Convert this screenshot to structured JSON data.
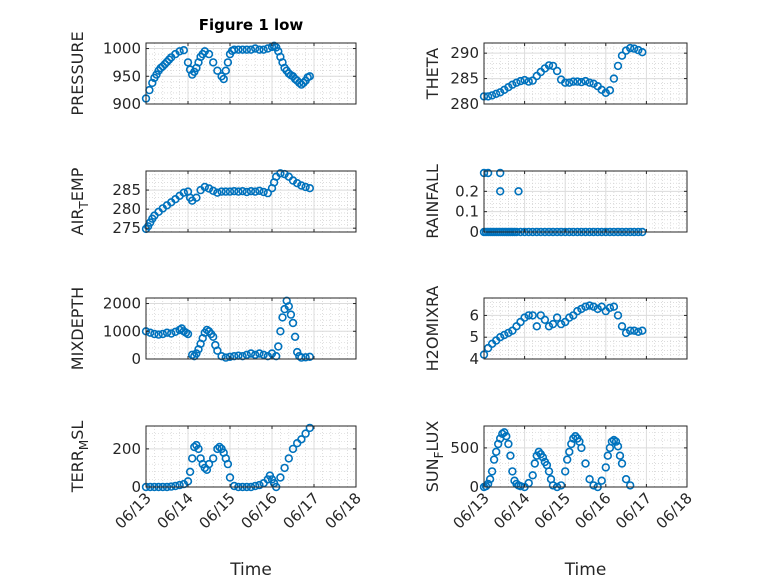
{
  "figure": {
    "title": "Figure 1 low",
    "xlabel": "Time",
    "x_ticks": [
      "06/13",
      "06/14",
      "06/15",
      "06/16",
      "06/17",
      "06/18"
    ],
    "marker_color": "#0072BD",
    "grid_major": true,
    "grid_minor": true
  },
  "chart_data": [
    {
      "type": "scatter",
      "ylabel": "PRESSURE",
      "ylim": [
        900,
        1010
      ],
      "yticks": [
        900,
        950,
        1000
      ],
      "x": [
        0,
        0.08,
        0.15,
        0.2,
        0.25,
        0.3,
        0.35,
        0.4,
        0.45,
        0.5,
        0.55,
        0.6,
        0.7,
        0.8,
        0.9,
        1.0,
        1.05,
        1.1,
        1.15,
        1.2,
        1.25,
        1.3,
        1.35,
        1.4,
        1.5,
        1.6,
        1.7,
        1.8,
        1.85,
        1.9,
        1.95,
        2.0,
        2.05,
        2.1,
        2.2,
        2.3,
        2.4,
        2.5,
        2.6,
        2.7,
        2.8,
        2.9,
        3.0,
        3.05,
        3.1,
        3.15,
        3.2,
        3.25,
        3.3,
        3.35,
        3.4,
        3.45,
        3.5,
        3.55,
        3.6,
        3.65,
        3.7,
        3.75,
        3.8,
        3.85,
        3.9
      ],
      "y": [
        910,
        925,
        938,
        947,
        953,
        960,
        965,
        968,
        972,
        976,
        980,
        984,
        990,
        995,
        997,
        975,
        962,
        953,
        958,
        965,
        975,
        985,
        990,
        995,
        990,
        975,
        960,
        950,
        945,
        960,
        975,
        990,
        996,
        998,
        998,
        998,
        998,
        998,
        1000,
        998,
        998,
        1000,
        1003,
        1005,
        1002,
        995,
        985,
        975,
        965,
        960,
        955,
        952,
        950,
        945,
        942,
        938,
        935,
        938,
        942,
        948,
        950
      ]
    },
    {
      "type": "scatter",
      "ylabel": "THETA",
      "ylim": [
        280,
        292
      ],
      "yticks": [
        280,
        285,
        290
      ],
      "x": [
        0,
        0.1,
        0.2,
        0.3,
        0.4,
        0.5,
        0.6,
        0.7,
        0.8,
        0.9,
        1.0,
        1.1,
        1.2,
        1.3,
        1.4,
        1.5,
        1.6,
        1.7,
        1.8,
        1.9,
        2.0,
        2.1,
        2.2,
        2.3,
        2.4,
        2.5,
        2.6,
        2.7,
        2.8,
        2.9,
        3.0,
        3.1,
        3.2,
        3.3,
        3.4,
        3.5,
        3.6,
        3.7,
        3.8,
        3.9
      ],
      "y": [
        281.5,
        281.5,
        281.7,
        282,
        282.3,
        282.8,
        283.3,
        283.8,
        284.2,
        284.5,
        284.7,
        284.4,
        284.6,
        285.5,
        286.3,
        287,
        287.6,
        287.5,
        286.5,
        284.8,
        284.2,
        284.2,
        284.4,
        284.4,
        284.3,
        284.5,
        284.2,
        284,
        283.5,
        282.8,
        282.2,
        282.7,
        285,
        287.5,
        289.5,
        290.5,
        291,
        290.9,
        290.6,
        290.2
      ]
    },
    {
      "type": "scatter",
      "ylabel": "AIR_TEMP",
      "ylim": [
        274,
        290
      ],
      "yticks": [
        275,
        280,
        285
      ],
      "x": [
        0,
        0.05,
        0.1,
        0.15,
        0.2,
        0.3,
        0.4,
        0.5,
        0.6,
        0.7,
        0.8,
        0.9,
        1.0,
        1.05,
        1.1,
        1.2,
        1.3,
        1.4,
        1.5,
        1.6,
        1.7,
        1.8,
        1.9,
        2.0,
        2.1,
        2.2,
        2.3,
        2.4,
        2.5,
        2.6,
        2.7,
        2.8,
        2.9,
        3.0,
        3.05,
        3.1,
        3.2,
        3.3,
        3.4,
        3.5,
        3.6,
        3.7,
        3.8,
        3.9
      ],
      "y": [
        274.8,
        275.5,
        276.5,
        277.5,
        278.3,
        279.3,
        280.2,
        281,
        281.8,
        282.6,
        283.5,
        284.3,
        284.6,
        283,
        282.2,
        283,
        285,
        285.8,
        285.4,
        284.8,
        284.3,
        284.6,
        284.6,
        284.6,
        284.7,
        284.6,
        284.7,
        284.5,
        284.7,
        284.6,
        284.8,
        284.5,
        284.2,
        285.5,
        287,
        288.5,
        289.4,
        289.2,
        288.5,
        287.5,
        286.8,
        286.2,
        285.8,
        285.5
      ]
    },
    {
      "type": "scatter",
      "ylabel": "RAINFALL",
      "ylim": [
        0,
        0.3
      ],
      "yticks": [
        0,
        0.1,
        0.2
      ],
      "x": [
        0,
        0.05,
        0.1,
        0.15,
        0.2,
        0.25,
        0.3,
        0.35,
        0.4,
        0.45,
        0.5,
        0.55,
        0.6,
        0.65,
        0.7,
        0.75,
        0.8,
        0.9,
        1.0,
        1.1,
        1.2,
        1.3,
        1.4,
        1.5,
        1.6,
        1.7,
        1.8,
        1.9,
        2.0,
        2.1,
        2.2,
        2.3,
        2.4,
        2.5,
        2.6,
        2.7,
        2.8,
        2.9,
        3.0,
        3.1,
        3.2,
        3.3,
        3.4,
        3.5,
        3.6,
        3.7,
        3.8,
        3.9,
        0,
        0.1,
        0.4,
        0.4,
        0.85
      ],
      "y": [
        0,
        0,
        0,
        0,
        0,
        0,
        0,
        0,
        0,
        0,
        0,
        0,
        0,
        0,
        0,
        0,
        0,
        0,
        0,
        0,
        0,
        0,
        0,
        0,
        0,
        0,
        0,
        0,
        0,
        0,
        0,
        0,
        0,
        0,
        0,
        0,
        0,
        0,
        0,
        0,
        0,
        0,
        0,
        0,
        0,
        0,
        0,
        0,
        0.29,
        0.29,
        0.29,
        0.2,
        0.2
      ]
    },
    {
      "type": "scatter",
      "ylabel": "MIXDEPTH",
      "ylim": [
        0,
        2200
      ],
      "yticks": [
        0,
        1000,
        2000
      ],
      "x": [
        0,
        0.1,
        0.2,
        0.3,
        0.4,
        0.5,
        0.6,
        0.7,
        0.8,
        0.85,
        0.9,
        0.95,
        1.0,
        1.1,
        1.15,
        1.2,
        1.25,
        1.3,
        1.35,
        1.4,
        1.45,
        1.5,
        1.55,
        1.6,
        1.65,
        1.7,
        1.8,
        1.9,
        2.0,
        2.1,
        2.2,
        2.3,
        2.4,
        2.5,
        2.6,
        2.7,
        2.8,
        2.9,
        3.0,
        3.1,
        3.15,
        3.2,
        3.25,
        3.3,
        3.35,
        3.4,
        3.45,
        3.5,
        3.55,
        3.6,
        3.65,
        3.7,
        3.8,
        3.9
      ],
      "y": [
        1000,
        950,
        900,
        880,
        900,
        950,
        920,
        980,
        1050,
        1100,
        1000,
        950,
        900,
        150,
        100,
        200,
        350,
        550,
        750,
        950,
        1050,
        1000,
        900,
        800,
        500,
        300,
        100,
        50,
        80,
        100,
        120,
        100,
        150,
        200,
        150,
        200,
        150,
        100,
        200,
        100,
        450,
        1000,
        1500,
        1800,
        2100,
        1900,
        1600,
        1300,
        800,
        250,
        100,
        50,
        60,
        80
      ]
    },
    {
      "type": "scatter",
      "ylabel": "H2OMIXRA",
      "ylim": [
        4,
        6.8
      ],
      "yticks": [
        4,
        5,
        6
      ],
      "x": [
        0,
        0.1,
        0.2,
        0.3,
        0.4,
        0.5,
        0.6,
        0.7,
        0.8,
        0.9,
        1.0,
        1.1,
        1.2,
        1.3,
        1.4,
        1.5,
        1.6,
        1.7,
        1.8,
        1.9,
        2.0,
        2.1,
        2.2,
        2.3,
        2.4,
        2.5,
        2.6,
        2.7,
        2.8,
        2.9,
        3.0,
        3.1,
        3.2,
        3.3,
        3.4,
        3.5,
        3.6,
        3.7,
        3.8,
        3.9
      ],
      "y": [
        4.2,
        4.5,
        4.7,
        4.85,
        5.0,
        5.1,
        5.2,
        5.3,
        5.5,
        5.7,
        5.9,
        6.0,
        6.0,
        5.5,
        6.0,
        5.8,
        5.5,
        5.6,
        5.9,
        5.6,
        5.7,
        5.9,
        6.0,
        6.2,
        6.3,
        6.4,
        6.45,
        6.4,
        6.3,
        6.4,
        6.2,
        6.35,
        6.4,
        6.0,
        5.5,
        5.2,
        5.3,
        5.3,
        5.25,
        5.3
      ]
    },
    {
      "type": "scatter",
      "ylabel": "TERR_MSL",
      "ylim": [
        0,
        320
      ],
      "yticks": [
        0,
        200
      ],
      "x": [
        0,
        0.1,
        0.2,
        0.3,
        0.4,
        0.5,
        0.6,
        0.7,
        0.8,
        0.9,
        1.0,
        1.05,
        1.1,
        1.15,
        1.2,
        1.25,
        1.3,
        1.35,
        1.4,
        1.45,
        1.5,
        1.6,
        1.7,
        1.75,
        1.8,
        1.85,
        1.9,
        1.95,
        2.0,
        2.1,
        2.2,
        2.3,
        2.4,
        2.5,
        2.6,
        2.7,
        2.8,
        2.9,
        2.95,
        3.0,
        3.05,
        3.1,
        3.2,
        3.3,
        3.4,
        3.5,
        3.6,
        3.7,
        3.8,
        3.9
      ],
      "y": [
        0,
        0,
        0,
        0,
        0,
        0,
        2,
        5,
        10,
        15,
        30,
        80,
        150,
        210,
        220,
        200,
        150,
        120,
        100,
        90,
        120,
        150,
        200,
        210,
        200,
        180,
        150,
        120,
        50,
        5,
        0,
        0,
        0,
        0,
        5,
        10,
        20,
        40,
        60,
        40,
        20,
        0,
        50,
        100,
        150,
        200,
        230,
        250,
        280,
        310
      ]
    },
    {
      "type": "scatter",
      "ylabel": "SUN_FLUX",
      "ylim": [
        0,
        780
      ],
      "yticks": [
        0,
        500
      ],
      "x": [
        0,
        0.05,
        0.1,
        0.15,
        0.2,
        0.25,
        0.3,
        0.35,
        0.4,
        0.45,
        0.5,
        0.55,
        0.6,
        0.65,
        0.7,
        0.75,
        0.8,
        0.85,
        0.9,
        1.0,
        1.1,
        1.2,
        1.25,
        1.3,
        1.35,
        1.4,
        1.45,
        1.5,
        1.55,
        1.6,
        1.65,
        1.7,
        1.8,
        1.9,
        2.0,
        2.05,
        2.1,
        2.15,
        2.2,
        2.25,
        2.3,
        2.35,
        2.4,
        2.5,
        2.6,
        2.7,
        2.8,
        2.9,
        3.0,
        3.05,
        3.1,
        3.15,
        3.2,
        3.25,
        3.3,
        3.35,
        3.4,
        3.5,
        3.6
      ],
      "y": [
        0,
        10,
        40,
        100,
        200,
        350,
        450,
        550,
        620,
        680,
        700,
        650,
        550,
        400,
        200,
        80,
        40,
        20,
        10,
        0,
        50,
        150,
        300,
        400,
        450,
        420,
        380,
        320,
        280,
        200,
        100,
        20,
        0,
        20,
        200,
        350,
        450,
        550,
        620,
        650,
        620,
        580,
        500,
        300,
        100,
        20,
        0,
        80,
        250,
        400,
        500,
        580,
        600,
        580,
        520,
        400,
        300,
        100,
        20
      ]
    }
  ]
}
